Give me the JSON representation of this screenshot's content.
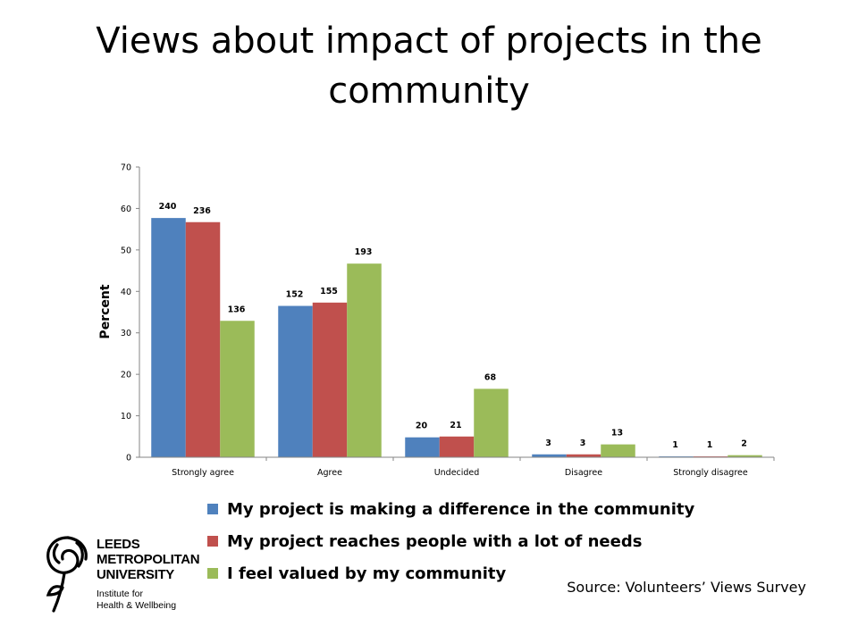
{
  "title": "Views about impact of projects in the community",
  "source": "Source: Volunteers’ Views Survey",
  "logo": {
    "line1": "LEEDS",
    "line2": "METROPOLITAN",
    "line3": "UNIVERSITY",
    "line4": "Institute for",
    "line5": "Health & Wellbeing"
  },
  "chart_data": {
    "type": "bar",
    "title": "Views about impact of projects in the community",
    "ylabel": "Percent",
    "xlabel": "",
    "ylim": [
      0,
      70
    ],
    "yticks": [
      0,
      10,
      20,
      30,
      40,
      50,
      60,
      70
    ],
    "categories": [
      "Strongly agree",
      "Agree",
      "Undecided",
      "Disagree",
      "Strongly disagree"
    ],
    "grid": false,
    "legend_position": "bottom",
    "series": [
      {
        "name": "My project is making a difference in the community",
        "color": "#4F81BD",
        "values": [
          57.7,
          36.5,
          4.8,
          0.7,
          0.2
        ],
        "labels": [
          "240",
          "152",
          "20",
          "3",
          "1"
        ]
      },
      {
        "name": "My project reaches people with a lot of needs",
        "color": "#C0504D",
        "values": [
          56.7,
          37.3,
          5.0,
          0.7,
          0.2
        ],
        "labels": [
          "236",
          "155",
          "21",
          "3",
          "1"
        ]
      },
      {
        "name": "I feel valued by my community",
        "color": "#9BBB59",
        "values": [
          32.9,
          46.7,
          16.5,
          3.1,
          0.5
        ],
        "labels": [
          "136",
          "193",
          "68",
          "13",
          "2"
        ]
      }
    ]
  }
}
